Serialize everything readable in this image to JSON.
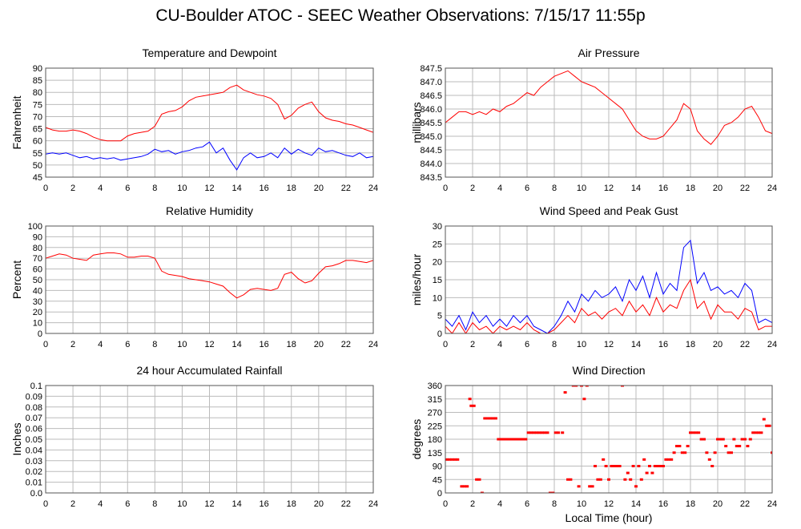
{
  "title": "CU-Boulder ATOC - SEEC Weather Observations: 7/15/17 11:55p",
  "colors": {
    "red": "#ff0000",
    "blue": "#0000ff",
    "grid": "#bbbbbb"
  },
  "shared_xlabel": "Local Time (hour)",
  "chart_data": [
    {
      "type": "line",
      "title": "Temperature and Dewpoint",
      "xlabel": "",
      "ylabel": "Fahrenheit",
      "xlim": [
        0,
        24
      ],
      "ylim": [
        45,
        90
      ],
      "xticks": [
        0,
        2,
        4,
        6,
        8,
        10,
        12,
        14,
        16,
        18,
        20,
        22,
        24
      ],
      "yticks": [
        45,
        50,
        55,
        60,
        65,
        70,
        75,
        80,
        85,
        90
      ],
      "grid": true,
      "series": [
        {
          "color": "#ff0000",
          "x": [
            0,
            0.5,
            1,
            1.5,
            2,
            2.5,
            3,
            3.5,
            4,
            4.5,
            5,
            5.5,
            6,
            6.5,
            7,
            7.5,
            8,
            8.5,
            9,
            9.5,
            10,
            10.5,
            11,
            11.5,
            12,
            12.5,
            13,
            13.5,
            14,
            14.5,
            15,
            15.5,
            16,
            16.5,
            17,
            17.5,
            18,
            18.5,
            19,
            19.5,
            20,
            20.5,
            21,
            21.5,
            22,
            22.5,
            23,
            23.5,
            24
          ],
          "y": [
            65.5,
            64.5,
            64,
            64,
            64.5,
            64,
            63,
            61.5,
            60.5,
            60,
            60,
            60,
            62,
            63,
            63.5,
            64,
            66,
            71,
            72,
            72.5,
            74,
            76.5,
            78,
            78.5,
            79,
            79.5,
            80,
            82,
            83,
            81,
            80,
            79,
            78.5,
            77.5,
            75,
            69,
            70.5,
            73.5,
            75,
            76,
            72,
            69.5,
            68.5,
            68,
            67,
            66.5,
            65.5,
            64.5,
            63.5
          ]
        },
        {
          "color": "#0000ff",
          "x": [
            0,
            0.5,
            1,
            1.5,
            2,
            2.5,
            3,
            3.5,
            4,
            4.5,
            5,
            5.5,
            6,
            6.5,
            7,
            7.5,
            8,
            8.5,
            9,
            9.5,
            10,
            10.5,
            11,
            11.5,
            12,
            12.5,
            13,
            13.5,
            14,
            14.5,
            15,
            15.5,
            16,
            16.5,
            17,
            17.5,
            18,
            18.5,
            19,
            19.5,
            20,
            20.5,
            21,
            21.5,
            22,
            22.5,
            23,
            23.5,
            24
          ],
          "y": [
            54.5,
            55,
            54.5,
            55,
            54,
            53,
            53.5,
            52.5,
            53,
            52.5,
            53,
            52,
            52.5,
            53,
            53.5,
            54.5,
            56.5,
            55.5,
            56,
            54.5,
            55.5,
            56,
            57,
            57.5,
            59.5,
            55,
            57,
            52,
            48,
            53,
            55,
            53,
            53.5,
            55,
            53,
            57,
            54.5,
            56.5,
            55,
            54,
            57,
            55.5,
            56,
            55,
            54,
            53.5,
            55,
            53,
            53.5
          ]
        }
      ]
    },
    {
      "type": "line",
      "title": "Air Pressure",
      "xlabel": "",
      "ylabel": "millibars",
      "xlim": [
        0,
        24
      ],
      "ylim": [
        843.5,
        847.5
      ],
      "xticks": [
        0,
        2,
        4,
        6,
        8,
        10,
        12,
        14,
        16,
        18,
        20,
        22,
        24
      ],
      "yticks": [
        843.5,
        844.0,
        844.5,
        845.0,
        845.5,
        846.0,
        846.5,
        847.0,
        847.5
      ],
      "ytick_labels": [
        "843.5",
        "844.0",
        "844.5",
        "845.0",
        "845.5",
        "846.0",
        "846.5",
        "847.0",
        "847.5"
      ],
      "grid": true,
      "series": [
        {
          "color": "#ff0000",
          "x": [
            0,
            0.5,
            1,
            1.5,
            2,
            2.5,
            3,
            3.5,
            4,
            4.5,
            5,
            5.5,
            6,
            6.5,
            7,
            7.5,
            8,
            8.5,
            9,
            9.5,
            10,
            10.5,
            11,
            11.5,
            12,
            12.5,
            13,
            13.5,
            14,
            14.5,
            15,
            15.5,
            16,
            16.5,
            17,
            17.5,
            18,
            18.5,
            19,
            19.5,
            20,
            20.5,
            21,
            21.5,
            22,
            22.5,
            23,
            23.5,
            24
          ],
          "y": [
            845.5,
            845.7,
            845.9,
            845.9,
            845.8,
            845.9,
            845.8,
            846.0,
            845.9,
            846.1,
            846.2,
            846.4,
            846.6,
            846.5,
            846.8,
            847.0,
            847.2,
            847.3,
            847.4,
            847.2,
            847.0,
            846.9,
            846.8,
            846.6,
            846.4,
            846.2,
            846.0,
            845.6,
            845.2,
            845.0,
            844.9,
            844.9,
            845.0,
            845.3,
            845.6,
            846.2,
            846.0,
            845.2,
            844.9,
            844.7,
            845.0,
            845.4,
            845.5,
            845.7,
            846.0,
            846.1,
            845.7,
            845.2,
            845.1
          ]
        }
      ]
    },
    {
      "type": "line",
      "title": "Relative Humidity",
      "xlabel": "",
      "ylabel": "Percent",
      "xlim": [
        0,
        24
      ],
      "ylim": [
        0,
        100
      ],
      "xticks": [
        0,
        2,
        4,
        6,
        8,
        10,
        12,
        14,
        16,
        18,
        20,
        22,
        24
      ],
      "yticks": [
        0,
        10,
        20,
        30,
        40,
        50,
        60,
        70,
        80,
        90,
        100
      ],
      "grid": true,
      "series": [
        {
          "color": "#ff0000",
          "x": [
            0,
            0.5,
            1,
            1.5,
            2,
            2.5,
            3,
            3.5,
            4,
            4.5,
            5,
            5.5,
            6,
            6.5,
            7,
            7.5,
            8,
            8.5,
            9,
            9.5,
            10,
            10.5,
            11,
            11.5,
            12,
            12.5,
            13,
            13.5,
            14,
            14.5,
            15,
            15.5,
            16,
            16.5,
            17,
            17.5,
            18,
            18.5,
            19,
            19.5,
            20,
            20.5,
            21,
            21.5,
            22,
            22.5,
            23,
            23.5,
            24
          ],
          "y": [
            70,
            72,
            74,
            73,
            70,
            69,
            68,
            73,
            74,
            75,
            75,
            74,
            71,
            71,
            72,
            72,
            70,
            58,
            55,
            54,
            53,
            51,
            50,
            49,
            48,
            46,
            44,
            38,
            33,
            36,
            41,
            42,
            41,
            40,
            42,
            55,
            57,
            51,
            47,
            49,
            56,
            62,
            63,
            65,
            68,
            68,
            67,
            66,
            68
          ]
        }
      ]
    },
    {
      "type": "line",
      "title": "Wind Speed and Peak Gust",
      "xlabel": "",
      "ylabel": "miles/hour",
      "xlim": [
        0,
        24
      ],
      "ylim": [
        0,
        30
      ],
      "xticks": [
        0,
        2,
        4,
        6,
        8,
        10,
        12,
        14,
        16,
        18,
        20,
        22,
        24
      ],
      "yticks": [
        0,
        5,
        10,
        15,
        20,
        25,
        30
      ],
      "grid": true,
      "series": [
        {
          "color": "#0000ff",
          "x": [
            0,
            0.5,
            1,
            1.5,
            2,
            2.5,
            3,
            3.5,
            4,
            4.5,
            5,
            5.5,
            6,
            6.5,
            7,
            7.5,
            8,
            8.5,
            9,
            9.5,
            10,
            10.5,
            11,
            11.5,
            12,
            12.5,
            13,
            13.5,
            14,
            14.5,
            15,
            15.5,
            16,
            16.5,
            17,
            17.5,
            18,
            18.5,
            19,
            19.5,
            20,
            20.5,
            21,
            21.5,
            22,
            22.5,
            23,
            23.5,
            24
          ],
          "y": [
            4,
            2,
            5,
            1,
            6,
            3,
            5,
            2,
            4,
            2,
            5,
            3,
            5,
            2,
            1,
            0,
            2,
            5,
            9,
            6,
            11,
            9,
            12,
            10,
            11,
            13,
            9,
            15,
            12,
            16,
            10,
            17,
            11,
            14,
            12,
            24,
            26,
            14,
            17,
            12,
            13,
            11,
            12,
            10,
            14,
            12,
            3,
            4,
            3
          ]
        },
        {
          "color": "#ff0000",
          "x": [
            0,
            0.5,
            1,
            1.5,
            2,
            2.5,
            3,
            3.5,
            4,
            4.5,
            5,
            5.5,
            6,
            6.5,
            7,
            7.5,
            8,
            8.5,
            9,
            9.5,
            10,
            10.5,
            11,
            11.5,
            12,
            12.5,
            13,
            13.5,
            14,
            14.5,
            15,
            15.5,
            16,
            16.5,
            17,
            17.5,
            18,
            18.5,
            19,
            19.5,
            20,
            20.5,
            21,
            21.5,
            22,
            22.5,
            23,
            23.5,
            24
          ],
          "y": [
            2,
            0,
            3,
            0,
            3,
            1,
            2,
            0,
            2,
            1,
            2,
            1,
            3,
            1,
            0,
            0,
            1,
            3,
            5,
            3,
            7,
            5,
            6,
            4,
            6,
            7,
            5,
            9,
            6,
            8,
            5,
            10,
            6,
            8,
            7,
            12,
            15,
            7,
            9,
            4,
            8,
            6,
            6,
            4,
            7,
            6,
            1,
            2,
            2
          ]
        }
      ]
    },
    {
      "type": "line",
      "title": "24 hour Accumulated Rainfall",
      "xlabel": "",
      "ylabel": "Inches",
      "xlim": [
        0,
        24
      ],
      "ylim": [
        0,
        0.1
      ],
      "xticks": [
        0,
        2,
        4,
        6,
        8,
        10,
        12,
        14,
        16,
        18,
        20,
        22,
        24
      ],
      "yticks": [
        0,
        0.01,
        0.02,
        0.03,
        0.04,
        0.05,
        0.06,
        0.07,
        0.08,
        0.09,
        0.1
      ],
      "ytick_labels": [
        "0.0",
        "0.01",
        "0.02",
        "0.03",
        "0.04",
        "0.05",
        "0.06",
        "0.07",
        "0.08",
        "0.09",
        "0.1"
      ],
      "grid": true,
      "series": [
        {
          "color": "#ff0000",
          "x": [
            0,
            24
          ],
          "y": [
            0,
            0
          ]
        }
      ]
    },
    {
      "type": "scatter",
      "title": "Wind Direction",
      "xlabel": "Local Time (hour)",
      "ylabel": "degrees",
      "xlim": [
        0,
        24
      ],
      "ylim": [
        0,
        360
      ],
      "xticks": [
        0,
        2,
        4,
        6,
        8,
        10,
        12,
        14,
        16,
        18,
        20,
        22,
        24
      ],
      "yticks": [
        0,
        45,
        90,
        135,
        180,
        225,
        270,
        315,
        360
      ],
      "grid": true,
      "series": [
        {
          "color": "#ff0000",
          "x": [
            0.1,
            0.3,
            0.5,
            0.7,
            0.9,
            1.2,
            1.4,
            1.6,
            1.8,
            1.9,
            2.1,
            2.3,
            2.5,
            2.7,
            2.9,
            3.1,
            3.3,
            3.5,
            3.7,
            3.9,
            4.1,
            4.3,
            4.5,
            4.7,
            4.9,
            5.1,
            5.3,
            5.5,
            5.7,
            5.9,
            6.1,
            6.3,
            6.5,
            6.7,
            6.9,
            7.1,
            7.3,
            7.5,
            7.7,
            7.9,
            8.1,
            8.3,
            8.6,
            8.8,
            9.0,
            9.2,
            9.4,
            9.6,
            9.8,
            10.0,
            10.2,
            10.4,
            10.6,
            10.8,
            11.0,
            11.2,
            11.4,
            11.6,
            11.8,
            12.0,
            12.2,
            12.4,
            12.6,
            12.8,
            13.0,
            13.2,
            13.4,
            13.6,
            13.8,
            14.0,
            14.2,
            14.4,
            14.6,
            14.8,
            15.0,
            15.2,
            15.4,
            15.6,
            15.8,
            16.0,
            16.2,
            16.4,
            16.6,
            16.8,
            17.0,
            17.2,
            17.4,
            17.6,
            17.8,
            18.0,
            18.2,
            18.4,
            18.6,
            18.8,
            19.0,
            19.2,
            19.4,
            19.6,
            19.8,
            20.0,
            20.2,
            20.4,
            20.6,
            20.8,
            21.0,
            21.2,
            21.4,
            21.6,
            21.8,
            22.0,
            22.2,
            22.4,
            22.6,
            22.8,
            23.0,
            23.2,
            23.4,
            23.6,
            23.8,
            24.0
          ],
          "y": [
            112,
            112,
            112,
            112,
            112,
            22,
            22,
            22,
            315,
            292,
            292,
            45,
            45,
            0,
            250,
            250,
            250,
            250,
            250,
            180,
            180,
            180,
            180,
            180,
            180,
            180,
            180,
            180,
            180,
            180,
            202,
            202,
            202,
            202,
            202,
            202,
            202,
            202,
            0,
            0,
            202,
            202,
            202,
            337,
            45,
            45,
            360,
            360,
            22,
            360,
            315,
            360,
            22,
            22,
            90,
            45,
            45,
            112,
            90,
            45,
            90,
            90,
            90,
            90,
            360,
            45,
            67,
            45,
            90,
            22,
            90,
            45,
            112,
            67,
            90,
            67,
            90,
            90,
            90,
            90,
            112,
            112,
            112,
            135,
            157,
            157,
            135,
            135,
            157,
            202,
            202,
            202,
            202,
            180,
            180,
            135,
            112,
            90,
            135,
            180,
            180,
            180,
            157,
            135,
            135,
            180,
            157,
            157,
            180,
            180,
            157,
            180,
            202,
            202,
            202,
            202,
            247,
            225,
            225,
            135
          ]
        }
      ]
    }
  ]
}
